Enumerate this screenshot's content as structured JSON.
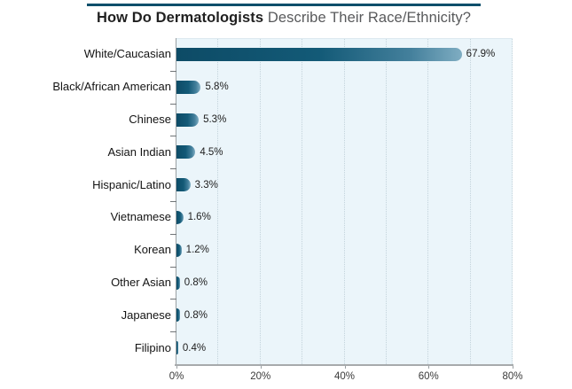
{
  "chart_data": {
    "type": "bar",
    "orientation": "horizontal",
    "title_bold": "How Do Dermatologists",
    "title_regular": "Describe Their Race/Ethnicity?",
    "categories": [
      "White/Caucasian",
      "Black/African American",
      "Chinese",
      "Asian Indian",
      "Hispanic/Latino",
      "Vietnamese",
      "Korean",
      "Other Asian",
      "Japanese",
      "Filipino"
    ],
    "values": [
      67.9,
      5.8,
      5.3,
      4.5,
      3.3,
      1.6,
      1.2,
      0.8,
      0.8,
      0.4
    ],
    "value_labels": [
      "67.9%",
      "5.8%",
      "5.3%",
      "4.5%",
      "3.3%",
      "1.6%",
      "1.2%",
      "0.8%",
      "0.8%",
      "0.4%"
    ],
    "xlabel": "",
    "ylabel": "",
    "xlim": [
      0,
      80
    ],
    "x_tick_labels": [
      "0%",
      "20%",
      "40%",
      "60%",
      "80%"
    ],
    "x_tick_values": [
      0,
      20,
      40,
      60,
      80
    ],
    "gridline_step": 10,
    "grid": "vertical dotted",
    "legend": "none",
    "colors": {
      "bar_dark": "#0d4b66",
      "bar_light_tip": "#7fadc2",
      "plot_background": "#ebf5fa",
      "title_rule": "#0e4f6b",
      "title_bold_text": "#212121",
      "title_regular_text": "#58595b",
      "gridline": "#c3d3db",
      "axis_line": "#a7aaac"
    }
  }
}
